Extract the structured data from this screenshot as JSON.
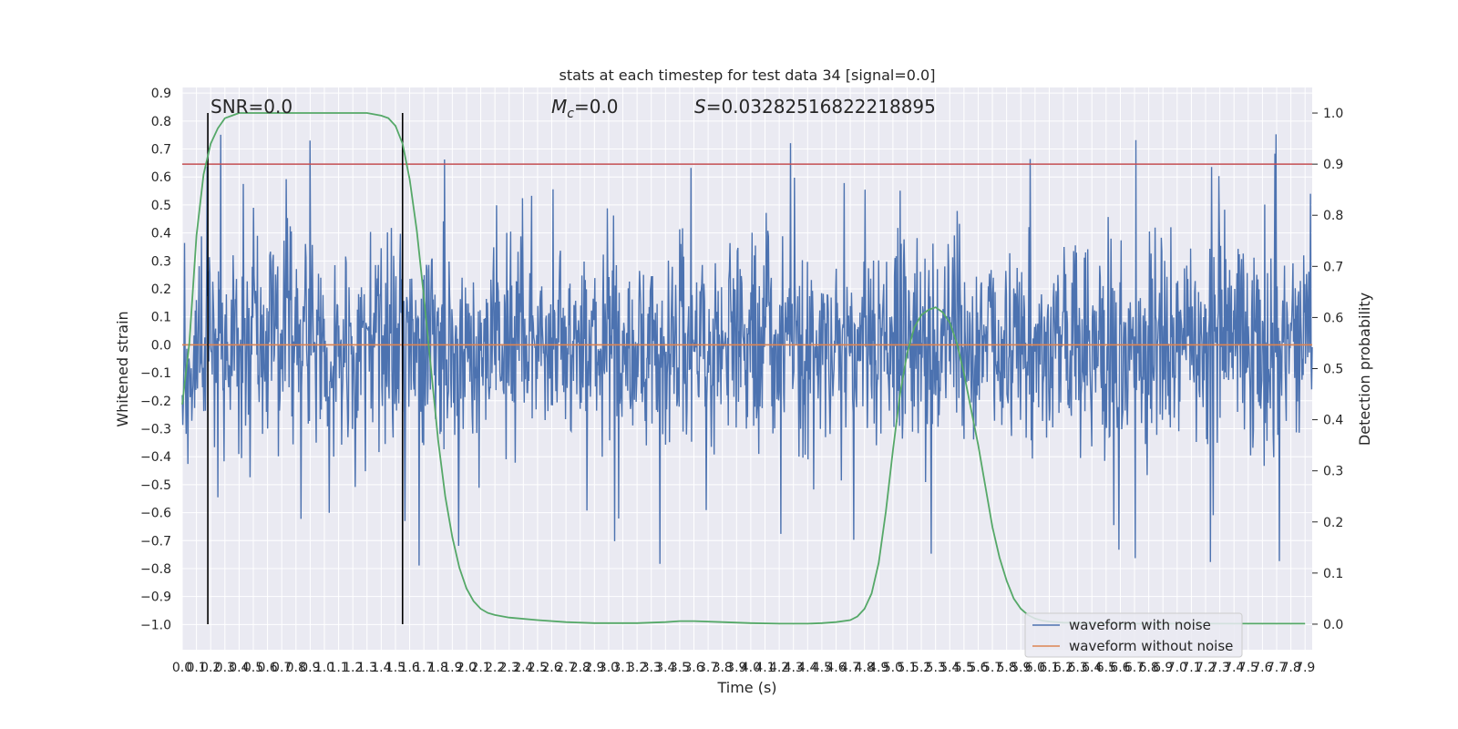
{
  "chart_data": {
    "type": "line",
    "title": "stats at each timestep for test data 34 [signal=0.0]",
    "xlabel": "Time (s)",
    "ylabel": "Whitened strain",
    "y2label": "Detection probability",
    "xlim": [
      0.0,
      7.95
    ],
    "ylim": [
      -1.09,
      0.92
    ],
    "y2lim": [
      -0.05,
      1.05
    ],
    "x_ticks": [
      "0.0",
      "0.1",
      "0.2",
      "0.3",
      "0.4",
      "0.5",
      "0.6",
      "0.7",
      "0.8",
      "0.9",
      "1.0",
      "1.1",
      "1.2",
      "1.3",
      "1.4",
      "1.5",
      "1.6",
      "1.7",
      "1.8",
      "1.9",
      "2.0",
      "2.1",
      "2.2",
      "2.3",
      "2.4",
      "2.5",
      "2.6",
      "2.7",
      "2.8",
      "2.9",
      "3.0",
      "3.1",
      "3.2",
      "3.3",
      "3.4",
      "3.5",
      "3.6",
      "3.7",
      "3.8",
      "3.9",
      "4.0",
      "4.1",
      "4.2",
      "4.3",
      "4.4",
      "4.5",
      "4.6",
      "4.7",
      "4.8",
      "4.9",
      "5.0",
      "5.1",
      "5.2",
      "5.3",
      "5.4",
      "5.5",
      "5.6",
      "5.7",
      "5.8",
      "5.9",
      "6.0",
      "6.1",
      "6.2",
      "6.3",
      "6.4",
      "6.5",
      "6.6",
      "6.7",
      "6.8",
      "6.9",
      "7.0",
      "7.1",
      "7.2",
      "7.3",
      "7.4",
      "7.5",
      "7.6",
      "7.7",
      "7.8",
      "7.9"
    ],
    "y_ticks": [
      "0.9",
      "0.8",
      "0.7",
      "0.6",
      "0.5",
      "0.4",
      "0.3",
      "0.2",
      "0.1",
      "0.0",
      "−0.1",
      "−0.2",
      "−0.3",
      "−0.4",
      "−0.5",
      "−0.6",
      "−0.7",
      "−0.8",
      "−0.9",
      "−1.0"
    ],
    "y_tick_values": [
      0.9,
      0.8,
      0.7,
      0.6,
      0.5,
      0.4,
      0.3,
      0.2,
      0.1,
      0.0,
      -0.1,
      -0.2,
      -0.3,
      -0.4,
      -0.5,
      -0.6,
      -0.7,
      -0.8,
      -0.9,
      -1.0
    ],
    "y2_ticks": [
      "1.0",
      "0.9",
      "0.8",
      "0.7",
      "0.6",
      "0.5",
      "0.4",
      "0.3",
      "0.2",
      "0.1",
      "0.0"
    ],
    "y2_tick_values": [
      1.0,
      0.9,
      0.8,
      0.7,
      0.6,
      0.5,
      0.4,
      0.3,
      0.2,
      0.1,
      0.0
    ],
    "threshold": 0.9,
    "markers_x": [
      0.18,
      1.55
    ],
    "annotations": {
      "snr": "SNR=0.0",
      "mc_symbol": "M",
      "mc_sub": "c",
      "mc_value": "=0.0",
      "s_symbol": "S",
      "s_value": "=0.03282516822218895"
    },
    "series": [
      {
        "name": "waveform with noise",
        "color": "#4c72b0",
        "kind": "noise",
        "envelope": 0.35,
        "spikes": [
          -0.82,
          0.83
        ],
        "samples": 2000
      },
      {
        "name": "waveform without noise",
        "color": "#dd8452",
        "kind": "flat",
        "value": 0.0
      },
      {
        "name": "detection probability",
        "color": "#55a868",
        "axis": "right",
        "x": [
          0.0,
          0.05,
          0.1,
          0.15,
          0.2,
          0.25,
          0.3,
          0.35,
          0.4,
          0.5,
          0.6,
          0.8,
          1.0,
          1.2,
          1.3,
          1.4,
          1.45,
          1.5,
          1.55,
          1.6,
          1.65,
          1.7,
          1.75,
          1.8,
          1.85,
          1.9,
          1.95,
          2.0,
          2.05,
          2.1,
          2.15,
          2.2,
          2.3,
          2.5,
          2.7,
          2.9,
          3.0,
          3.2,
          3.4,
          3.5,
          3.6,
          3.8,
          4.0,
          4.2,
          4.4,
          4.5,
          4.6,
          4.7,
          4.75,
          4.8,
          4.85,
          4.9,
          4.95,
          5.0,
          5.05,
          5.1,
          5.15,
          5.2,
          5.25,
          5.3,
          5.35,
          5.4,
          5.45,
          5.5,
          5.55,
          5.6,
          5.65,
          5.7,
          5.75,
          5.8,
          5.85,
          5.9,
          5.95,
          6.0,
          6.05,
          6.1,
          6.2,
          6.4,
          6.6,
          7.0,
          7.5,
          7.9
        ],
        "y": [
          0.43,
          0.55,
          0.76,
          0.88,
          0.94,
          0.97,
          0.99,
          0.995,
          1.0,
          1.0,
          1.0,
          1.0,
          1.0,
          1.0,
          1.0,
          0.995,
          0.99,
          0.975,
          0.94,
          0.87,
          0.77,
          0.64,
          0.5,
          0.36,
          0.25,
          0.17,
          0.11,
          0.07,
          0.045,
          0.03,
          0.022,
          0.018,
          0.013,
          0.008,
          0.004,
          0.002,
          0.002,
          0.002,
          0.004,
          0.006,
          0.006,
          0.004,
          0.002,
          0.001,
          0.001,
          0.002,
          0.004,
          0.008,
          0.015,
          0.03,
          0.06,
          0.12,
          0.22,
          0.34,
          0.45,
          0.53,
          0.58,
          0.605,
          0.615,
          0.62,
          0.61,
          0.59,
          0.55,
          0.49,
          0.42,
          0.35,
          0.27,
          0.19,
          0.13,
          0.085,
          0.05,
          0.03,
          0.018,
          0.011,
          0.007,
          0.005,
          0.003,
          0.002,
          0.001,
          0.001,
          0.001,
          0.001
        ]
      }
    ],
    "legend": {
      "placement": "lower right",
      "entries": [
        "waveform with noise",
        "waveform without noise"
      ]
    }
  }
}
